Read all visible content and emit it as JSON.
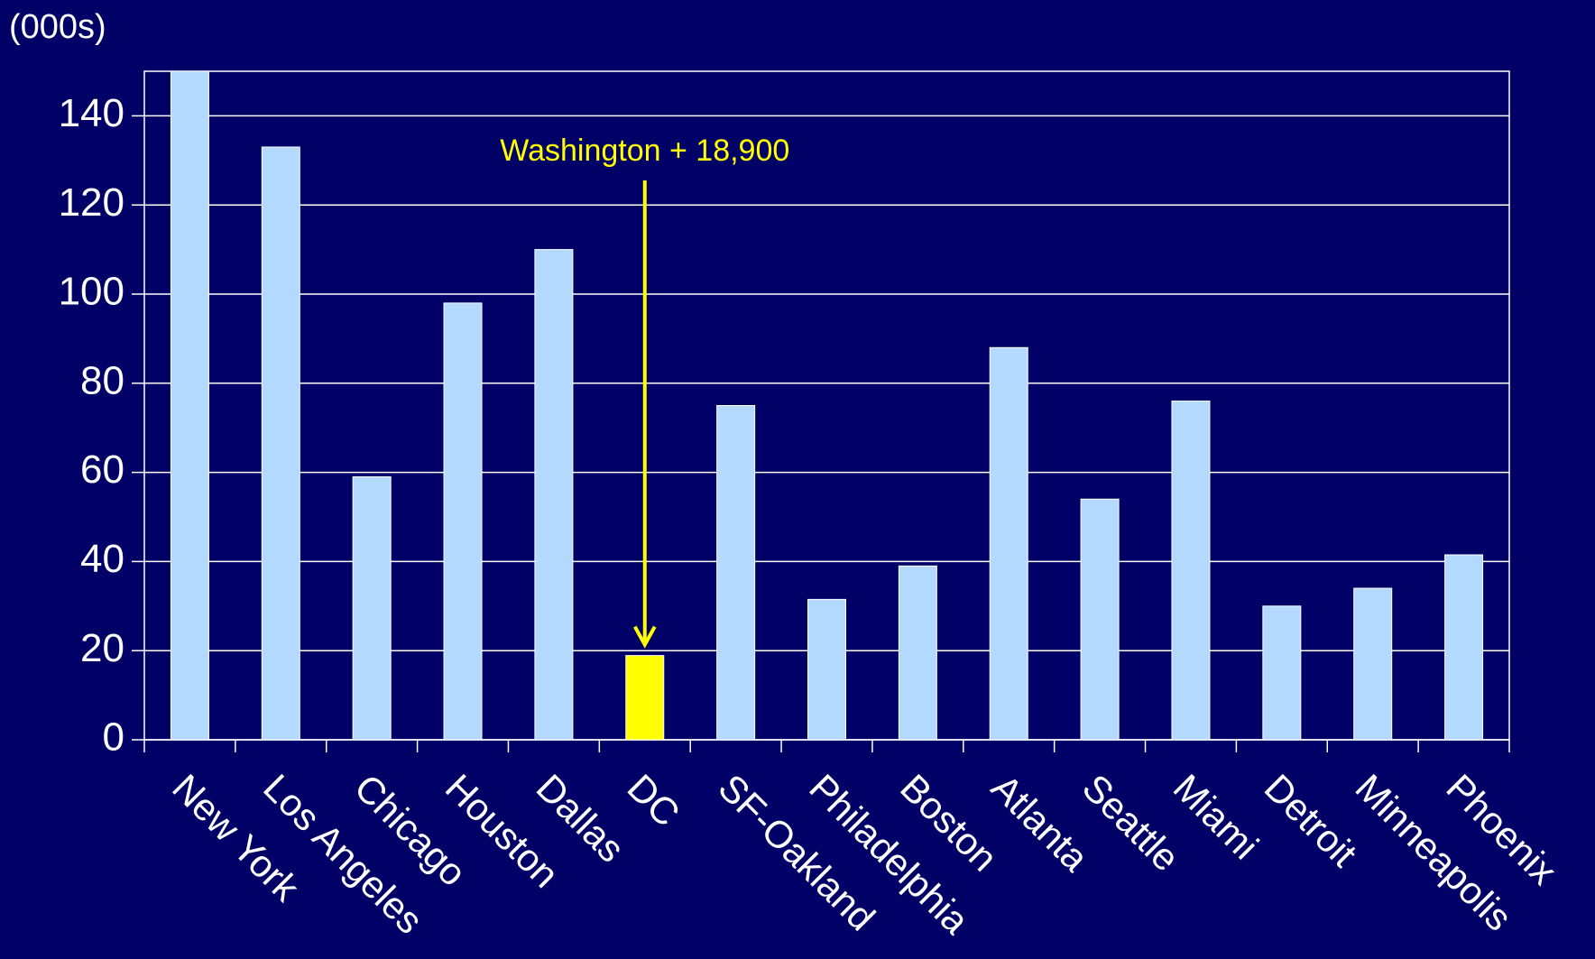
{
  "chart_data": {
    "type": "bar",
    "y_axis_label": "(000s)",
    "annotation": "Washington + 18,900",
    "categories": [
      "New York",
      "Los Angeles",
      "Chicago",
      "Houston",
      "Dallas",
      "DC",
      "SF-Oakland",
      "Philadelphia",
      "Boston",
      "Atlanta",
      "Seattle",
      "Miami",
      "Detroit",
      "Minneapolis",
      "Phoenix"
    ],
    "values": [
      150,
      133,
      59,
      98,
      110,
      18.9,
      75,
      31.5,
      39,
      88,
      54,
      76,
      30,
      34,
      41.5
    ],
    "colors": [
      "#b3d9ff",
      "#b3d9ff",
      "#b3d9ff",
      "#b3d9ff",
      "#b3d9ff",
      "#ffff00",
      "#b3d9ff",
      "#b3d9ff",
      "#b3d9ff",
      "#b3d9ff",
      "#b3d9ff",
      "#b3d9ff",
      "#b3d9ff",
      "#b3d9ff",
      "#b3d9ff"
    ],
    "ylim": [
      0,
      150
    ],
    "yticks": [
      0,
      20,
      40,
      60,
      80,
      100,
      120,
      140
    ],
    "grid": true
  }
}
